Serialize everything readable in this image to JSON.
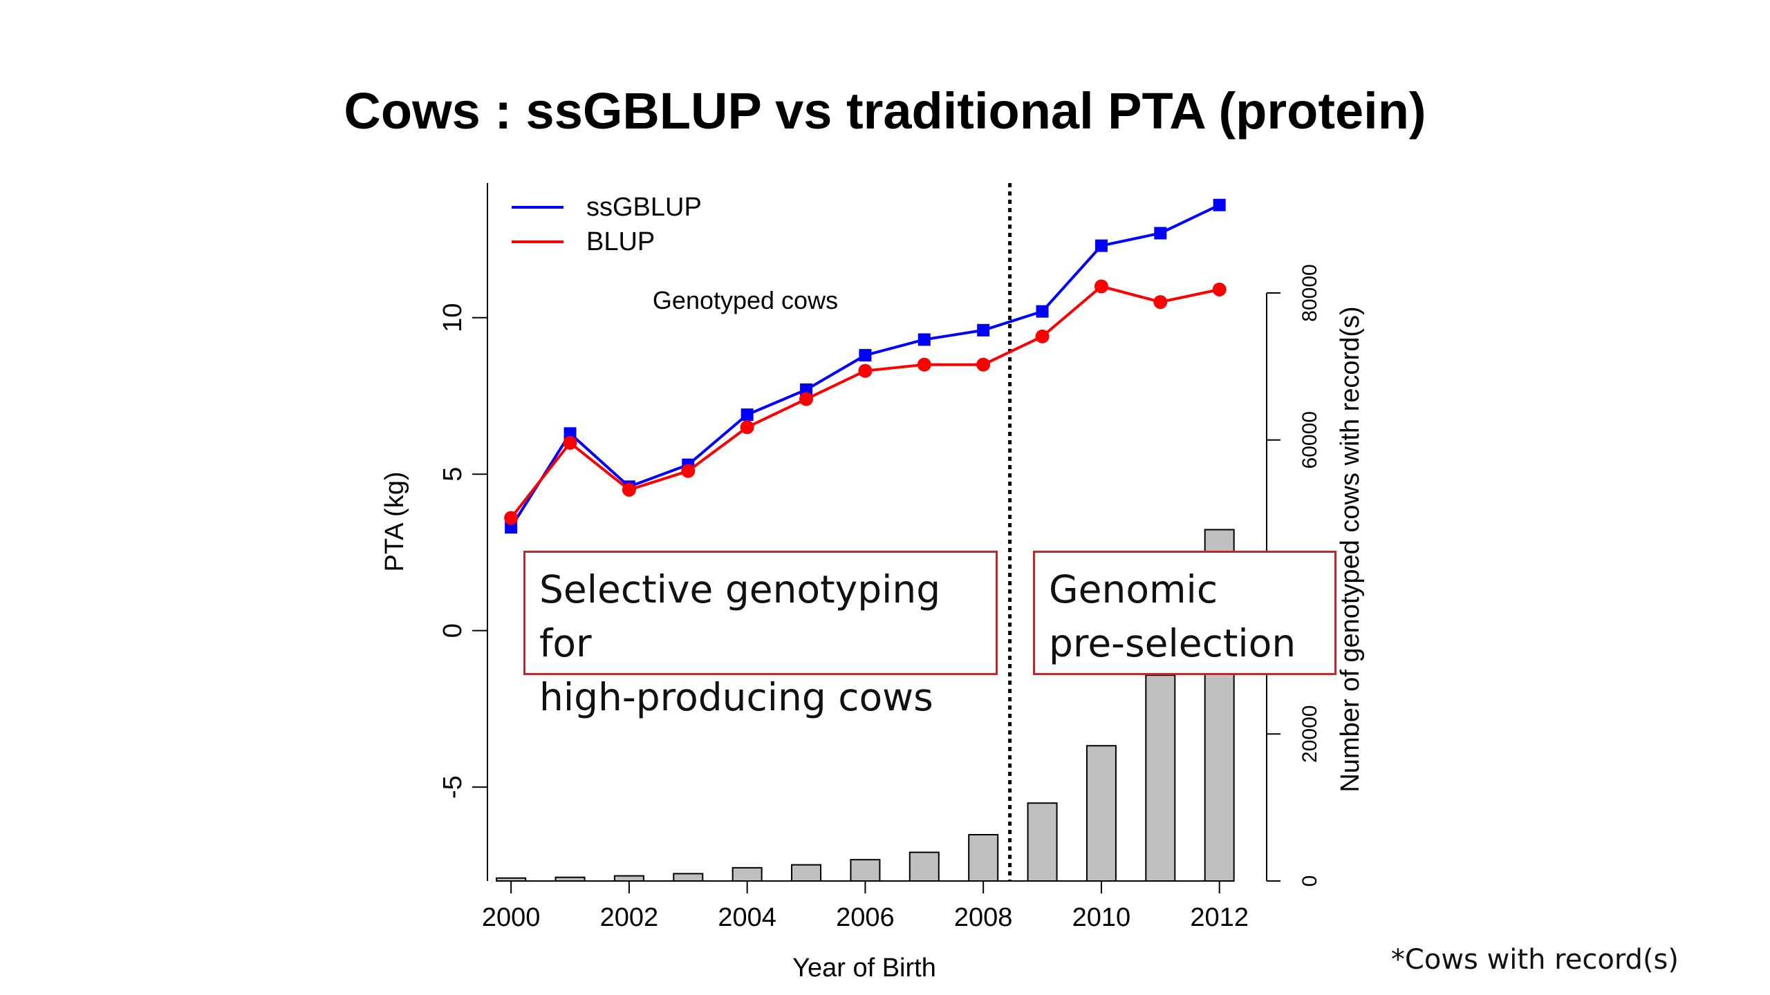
{
  "title": "Cows : ssGBLUP vs traditional PTA (protein)",
  "chart_data": {
    "type": "line",
    "x": [
      2000,
      2001,
      2002,
      2003,
      2004,
      2005,
      2006,
      2007,
      2008,
      2009,
      2010,
      2011,
      2012
    ],
    "series": [
      {
        "name": "ssGBLUP",
        "color": "#0000ff",
        "marker": "square",
        "values": [
          3.3,
          6.3,
          4.6,
          5.3,
          6.9,
          7.7,
          8.8,
          9.3,
          9.6,
          10.2,
          12.3,
          12.7,
          13.6
        ]
      },
      {
        "name": "BLUP",
        "color": "#ff0000",
        "marker": "circle",
        "values": [
          3.6,
          6.0,
          4.5,
          5.1,
          6.5,
          7.4,
          8.3,
          8.5,
          8.5,
          9.4,
          11.0,
          10.5,
          10.9
        ]
      }
    ],
    "bars": {
      "name": "Genotyped cows",
      "axis": "right",
      "color": "#c0c0c0",
      "values": [
        400,
        500,
        700,
        1000,
        1800,
        2200,
        2900,
        3900,
        6300,
        10600,
        18400,
        28000,
        47800
      ]
    },
    "xlabel": "Year of Birth",
    "ylabel": "PTA (kg)",
    "y2label": "Number of genotyped cows with record(s)",
    "xticks": [
      "2000",
      "2002",
      "2004",
      "2006",
      "2008",
      "2010",
      "2012"
    ],
    "yticks": [
      "-5",
      "0",
      "5",
      "10"
    ],
    "y2ticks": [
      "0",
      "20000",
      "60000",
      "80000"
    ],
    "xlim": [
      1999.6,
      2012.8
    ],
    "ylim": [
      -8,
      14.3
    ],
    "y2lim": [
      0,
      80000
    ],
    "divider_x": 2008.45,
    "legend": {
      "placement": "top-left",
      "entries": [
        "ssGBLUP",
        "BLUP"
      ]
    },
    "annotation": "Genotyped cows"
  },
  "boxes": {
    "left": {
      "line1": "Selective genotyping for",
      "line2": "high-producing cows"
    },
    "right": {
      "line1": "Genomic",
      "line2": "pre-selection"
    }
  },
  "footnote": "*Cows with record(s)"
}
